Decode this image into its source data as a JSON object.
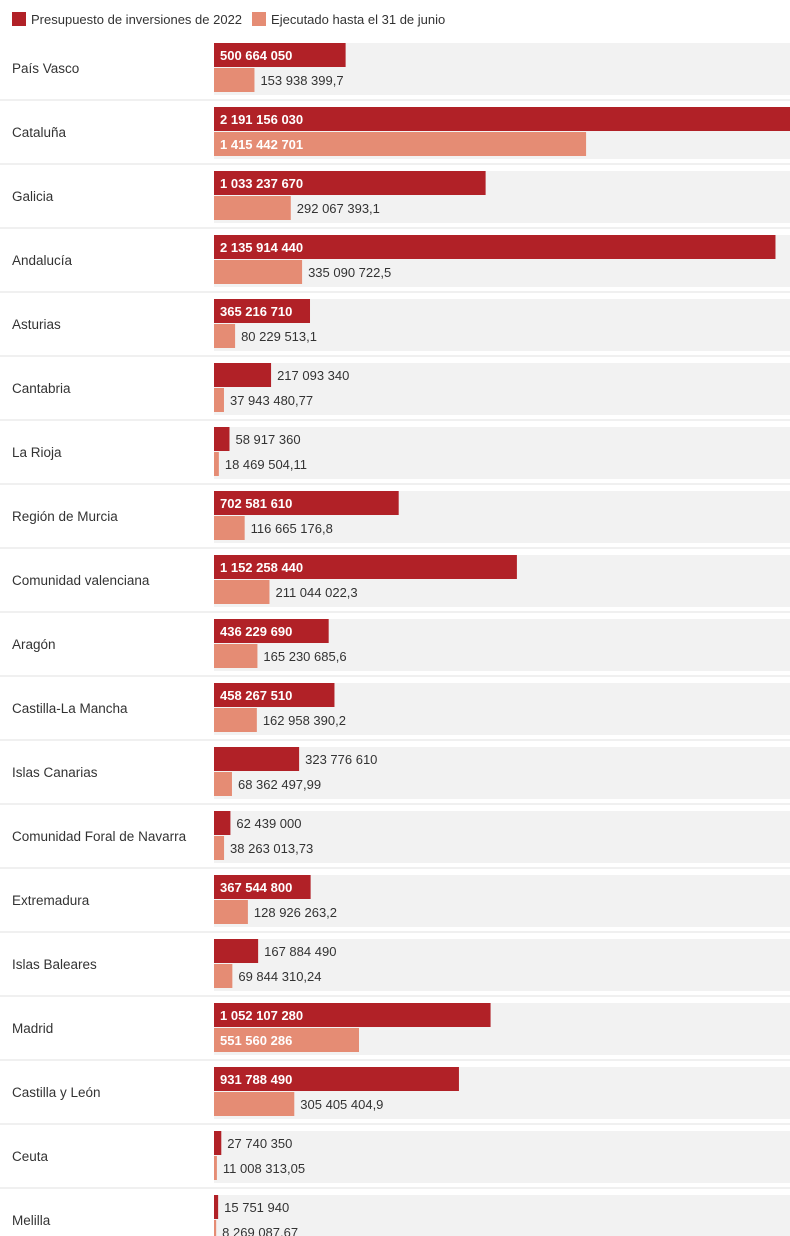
{
  "legend": {
    "items": [
      {
        "label": "Presupuesto de inversiones de 2022",
        "color": "#b12127"
      },
      {
        "label": "Ejecutado hasta el 31 de junio",
        "color": "#e58c74"
      }
    ]
  },
  "chart_data": {
    "type": "bar",
    "orientation": "horizontal",
    "categories": [
      "País Vasco",
      "Cataluña",
      "Galicia",
      "Andalucía",
      "Asturias",
      "Cantabria",
      "La Rioja",
      "Región de Murcia",
      "Comunidad valenciana",
      "Aragón",
      "Castilla-La Mancha",
      "Islas Canarias",
      "Comunidad Foral de Navarra",
      "Extremadura",
      "Islas Baleares",
      "Madrid",
      "Castilla y León",
      "Ceuta",
      "Melilla"
    ],
    "series": [
      {
        "name": "Presupuesto de inversiones de 2022",
        "color": "#b12127",
        "values": [
          500664050,
          2191156030,
          1033237670,
          2135914440,
          365216710,
          217093340,
          58917360,
          702581610,
          1152258440,
          436229690,
          458267510,
          323776610,
          62439000,
          367544800,
          167884490,
          1052107280,
          931788490,
          27740350,
          15751940
        ],
        "labels": [
          "500 664 050",
          "2 191 156 030",
          "1 033 237 670",
          "2 135 914 440",
          "365 216 710",
          "217 093 340",
          "58 917 360",
          "702 581 610",
          "1 152 258 440",
          "436 229 690",
          "458 267 510",
          "323 776 610",
          "62 439 000",
          "367 544 800",
          "167 884 490",
          "1 052 107 280",
          "931 788 490",
          "27 740 350",
          "15 751 940"
        ]
      },
      {
        "name": "Ejecutado hasta el 31 de junio",
        "color": "#e58c74",
        "values": [
          153938399.7,
          1415442701,
          292067393.1,
          335090722.5,
          80229513.1,
          37943480.77,
          18469504.11,
          116665176.8,
          211044022.3,
          165230685.6,
          162958390.2,
          68362497.99,
          38263013.73,
          128926263.2,
          69844310.24,
          551560286,
          305405404.9,
          11008313.05,
          8269087.67
        ],
        "labels": [
          "153 938 399,7",
          "1 415 442 701",
          "292 067 393,1",
          "335 090 722,5",
          "80 229 513,1",
          "37 943 480,77",
          "18 469 504,11",
          "116 665 176,8",
          "211 044 022,3",
          "165 230 685,6",
          "162 958 390,2",
          "68 362 497,99",
          "38 263 013,73",
          "128 926 263,2",
          "69 844 310,24",
          "551 560 286",
          "305 405 404,9",
          "11 008 313,05",
          "8 269 087,67"
        ]
      }
    ],
    "xlim": [
      0,
      2191156030
    ],
    "row_background": "#f2f2f2",
    "divider_color": "#e0e0e0",
    "title": "",
    "xlabel": "",
    "ylabel": ""
  }
}
